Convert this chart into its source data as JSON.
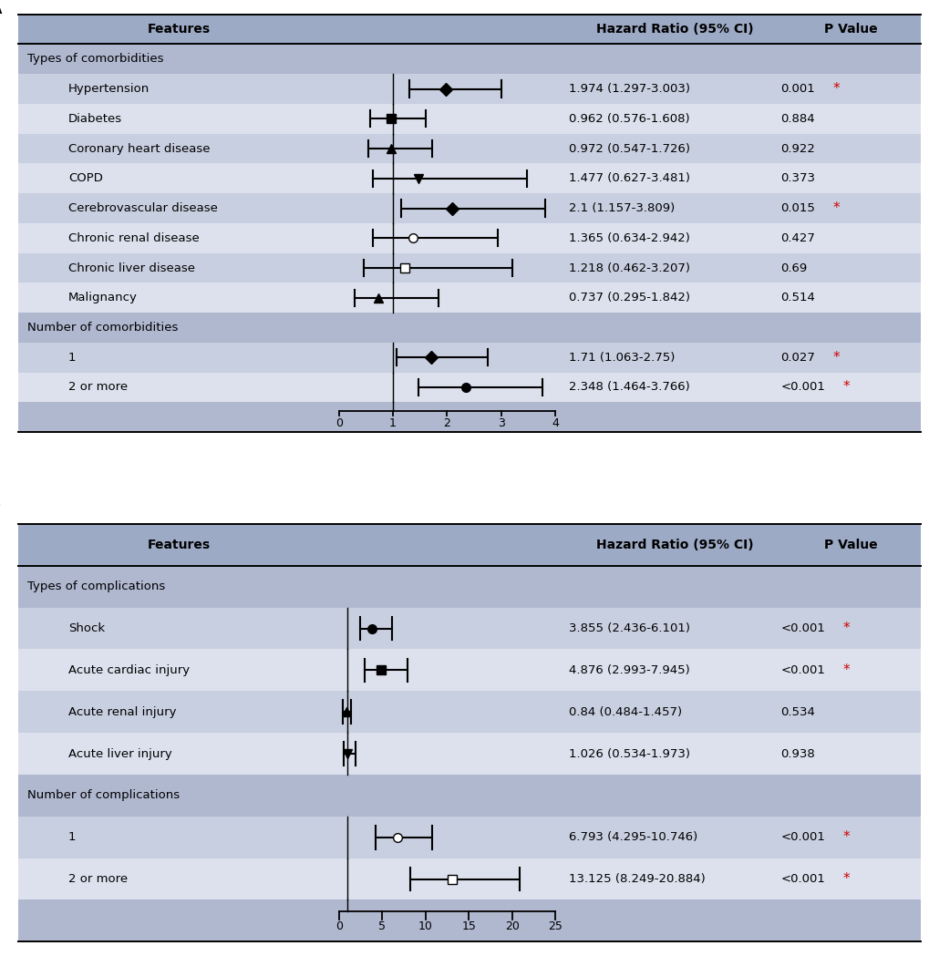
{
  "panel_A": {
    "title_label": "A",
    "section_headers": [
      "Types of comorbidities",
      "Number of comorbidities"
    ],
    "rows": [
      {
        "label": "Hypertension",
        "hr": 1.974,
        "lo": 1.297,
        "hi": 3.003,
        "ci_text": "1.974 (1.297-3.003)",
        "p_text": "0.001",
        "p_sig": true,
        "marker": "D",
        "filled": true,
        "bg": "#c8cfe0"
      },
      {
        "label": "Diabetes",
        "hr": 0.962,
        "lo": 0.576,
        "hi": 1.608,
        "ci_text": "0.962 (0.576-1.608)",
        "p_text": "0.884",
        "p_sig": false,
        "marker": "s",
        "filled": true,
        "bg": "#dde1ee"
      },
      {
        "label": "Coronary heart disease",
        "hr": 0.972,
        "lo": 0.547,
        "hi": 1.726,
        "ci_text": "0.972 (0.547-1.726)",
        "p_text": "0.922",
        "p_sig": false,
        "marker": "^",
        "filled": true,
        "bg": "#c8cfe0"
      },
      {
        "label": "COPD",
        "hr": 1.477,
        "lo": 0.627,
        "hi": 3.481,
        "ci_text": "1.477 (0.627-3.481)",
        "p_text": "0.373",
        "p_sig": false,
        "marker": "v",
        "filled": true,
        "bg": "#dde1ee"
      },
      {
        "label": "Cerebrovascular disease",
        "hr": 2.1,
        "lo": 1.157,
        "hi": 3.809,
        "ci_text": "2.1 (1.157-3.809)",
        "p_text": "0.015",
        "p_sig": true,
        "marker": "D",
        "filled": true,
        "bg": "#c8cfe0"
      },
      {
        "label": "Chronic renal disease",
        "hr": 1.365,
        "lo": 0.634,
        "hi": 2.942,
        "ci_text": "1.365 (0.634-2.942)",
        "p_text": "0.427",
        "p_sig": false,
        "marker": "o",
        "filled": false,
        "bg": "#dde1ee"
      },
      {
        "label": "Chronic liver disease",
        "hr": 1.218,
        "lo": 0.462,
        "hi": 3.207,
        "ci_text": "1.218 (0.462-3.207)",
        "p_text": "0.69",
        "p_sig": false,
        "marker": "s",
        "filled": false,
        "bg": "#c8cfe0"
      },
      {
        "label": "Malignancy",
        "hr": 0.737,
        "lo": 0.295,
        "hi": 1.842,
        "ci_text": "0.737 (0.295-1.842)",
        "p_text": "0.514",
        "p_sig": false,
        "marker": "^",
        "filled": true,
        "bg": "#dde1ee"
      },
      {
        "label": "1",
        "hr": 1.71,
        "lo": 1.063,
        "hi": 2.75,
        "ci_text": "1.71 (1.063-2.75)",
        "p_text": "0.027",
        "p_sig": true,
        "marker": "D",
        "filled": true,
        "bg": "#c8cfe0"
      },
      {
        "label": "2 or more",
        "hr": 2.348,
        "lo": 1.464,
        "hi": 3.766,
        "ci_text": "2.348 (1.464-3.766)",
        "p_text": "<0.001",
        "p_sig": true,
        "marker": "o",
        "filled": true,
        "bg": "#dde1ee"
      }
    ],
    "section_indices": [
      0,
      8
    ],
    "xmin": 0,
    "xmax": 4,
    "xticks": [
      0,
      1,
      2,
      3,
      4
    ],
    "vline_x": 1
  },
  "panel_B": {
    "title_label": "B",
    "section_headers": [
      "Types of complications",
      "Number of complications"
    ],
    "rows": [
      {
        "label": "Shock",
        "hr": 3.855,
        "lo": 2.436,
        "hi": 6.101,
        "ci_text": "3.855 (2.436-6.101)",
        "p_text": "<0.001",
        "p_sig": true,
        "marker": "o",
        "filled": true,
        "bg": "#c8cfe0"
      },
      {
        "label": "Acute cardiac injury",
        "hr": 4.876,
        "lo": 2.993,
        "hi": 7.945,
        "ci_text": "4.876 (2.993-7.945)",
        "p_text": "<0.001",
        "p_sig": true,
        "marker": "s",
        "filled": true,
        "bg": "#dde1ee"
      },
      {
        "label": "Acute renal injury",
        "hr": 0.84,
        "lo": 0.484,
        "hi": 1.457,
        "ci_text": "0.84 (0.484-1.457)",
        "p_text": "0.534",
        "p_sig": false,
        "marker": "^",
        "filled": true,
        "bg": "#c8cfe0"
      },
      {
        "label": "Acute liver injury",
        "hr": 1.026,
        "lo": 0.534,
        "hi": 1.973,
        "ci_text": "1.026 (0.534-1.973)",
        "p_text": "0.938",
        "p_sig": false,
        "marker": "v",
        "filled": true,
        "bg": "#dde1ee"
      },
      {
        "label": "1",
        "hr": 6.793,
        "lo": 4.295,
        "hi": 10.746,
        "ci_text": "6.793 (4.295-10.746)",
        "p_text": "<0.001",
        "p_sig": true,
        "marker": "o",
        "filled": false,
        "bg": "#c8cfe0"
      },
      {
        "label": "2 or more",
        "hr": 13.125,
        "lo": 8.249,
        "hi": 20.884,
        "ci_text": "13.125 (8.249-20.884)",
        "p_text": "<0.001",
        "p_sig": true,
        "marker": "s",
        "filled": false,
        "bg": "#dde1ee"
      }
    ],
    "section_indices": [
      0,
      4
    ],
    "xmin": 0,
    "xmax": 25,
    "xticks": [
      0,
      5,
      10,
      15,
      20,
      25
    ],
    "vline_x": 1
  },
  "bg_header": "#9daac5",
  "bg_section": "#b0b8d0",
  "sig_color": "#cc0000",
  "marker_size": 7,
  "lw": 1.5
}
